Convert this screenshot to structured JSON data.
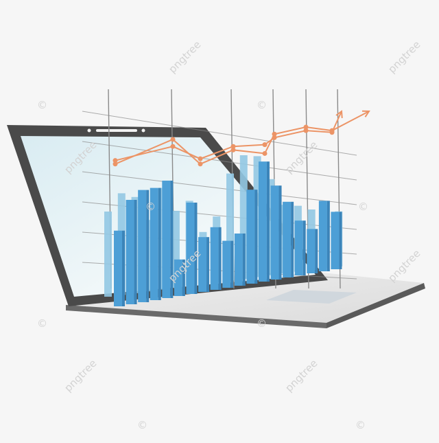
{
  "illustration": {
    "subject": "laptop-with-3d-bar-chart-and-trend-lines",
    "colors": {
      "background": "#f6f6f6",
      "laptop_frame": "#4a4a4a",
      "screen": "#e4f1f5",
      "bar_front": "#4d9fd6",
      "bar_back": "#92c8e3",
      "trend_line": "#ec9466",
      "grid": "#8a8a8a"
    },
    "bars_front": [
      0.58,
      0.8,
      0.86,
      0.86,
      0.9,
      0.28,
      0.7,
      0.42,
      0.48,
      0.36,
      0.4,
      0.72,
      0.92,
      0.72,
      0.58,
      0.42,
      0.34,
      0.54,
      0.44
    ],
    "bars_back": [
      0.62,
      0.74,
      0.7,
      0.52,
      0.74,
      0.56,
      0.62,
      0.38,
      0.48,
      0.78,
      0.9,
      0.88,
      0.7,
      0.5,
      0.48,
      0.44,
      0.46,
      0.4
    ],
    "trend_series": [
      {
        "name": "",
        "values": [
          0.4,
          0.68,
          0.4,
          0.56,
          0.52,
          0.74,
          0.82,
          0.78,
          1.0
        ]
      },
      {
        "name": "",
        "values": [
          0.44,
          0.6,
          0.46,
          0.6,
          0.62,
          0.7,
          0.78,
          0.76,
          1.0
        ]
      }
    ]
  },
  "watermark": {
    "text": "pngtree",
    "copyright_symbol": "©"
  }
}
